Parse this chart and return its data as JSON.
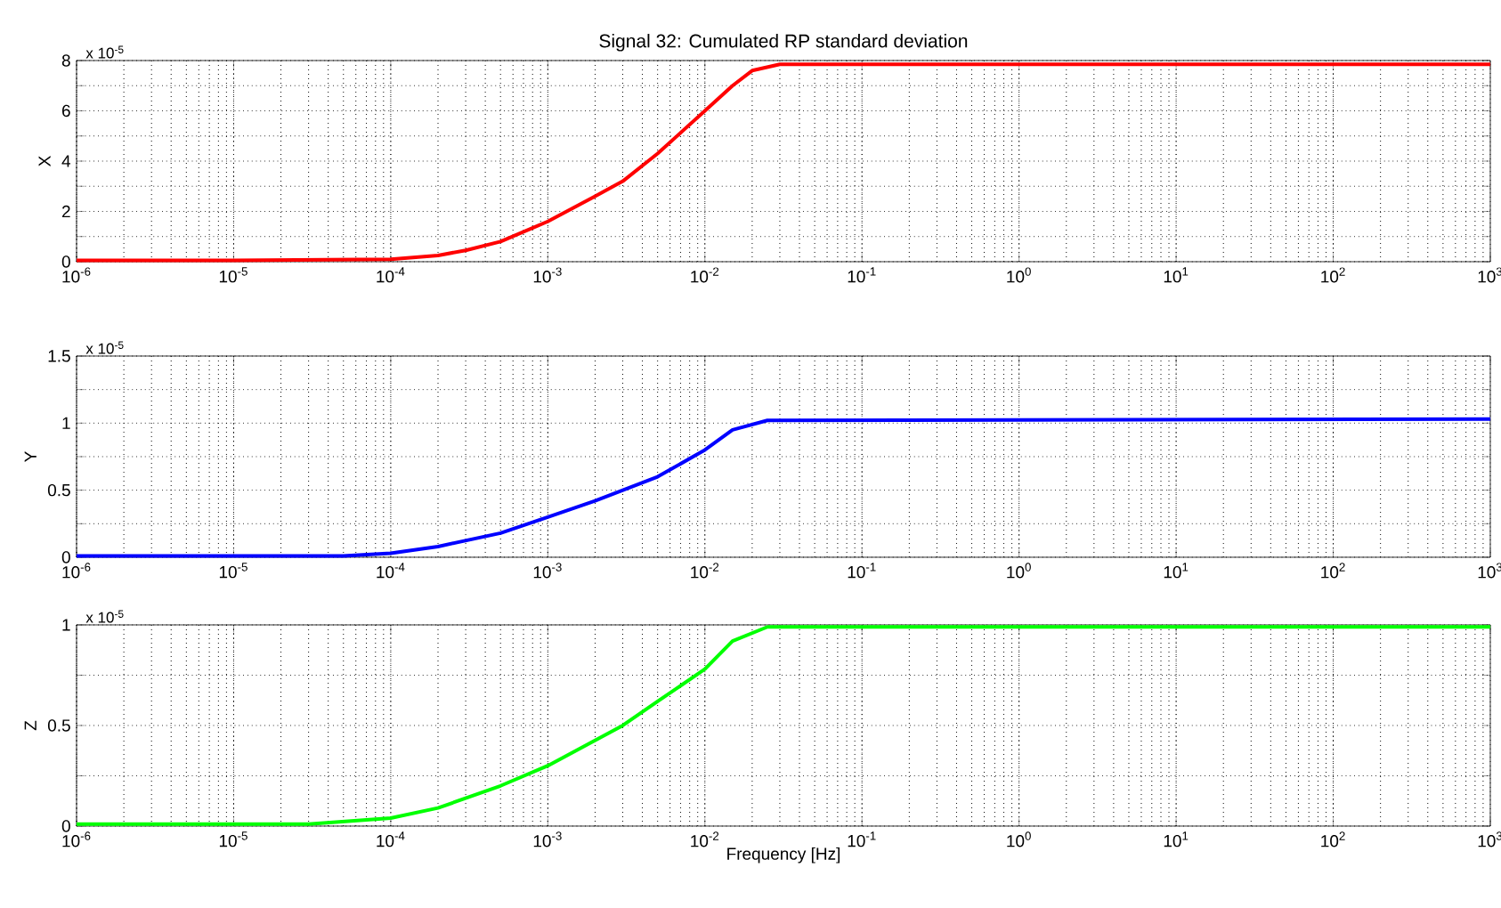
{
  "chart_data": [
    {
      "type": "line",
      "title": "Signal 32: Cumulated RP standard deviation",
      "ylabel": "X",
      "log": "x",
      "grid": true,
      "marker": "none",
      "line_style": "solid",
      "xlim": [
        1e-06,
        1000
      ],
      "xticks": [
        {
          "value": 1e-06,
          "label": "10$^{-6}$"
        },
        {
          "value": 1e-05,
          "label": "10$^{-5}$"
        },
        {
          "value": 0.0001,
          "label": "10$^{-4}$"
        },
        {
          "value": 0.001,
          "label": "10$^{-3}$"
        },
        {
          "value": 0.01,
          "label": "10$^{-2}$"
        },
        {
          "value": 0.1,
          "label": "10$^{-1}$"
        },
        {
          "value": 1,
          "label": "10$^{0}$"
        },
        {
          "value": 10,
          "label": "10$^{1}$"
        },
        {
          "value": 100,
          "label": "10$^{2}$"
        },
        {
          "value": 1000,
          "label": "10$^{3}$"
        }
      ],
      "ylim": [
        0,
        8
      ],
      "yticks": [
        0,
        {
          "value": 1,
          "label": null
        },
        2,
        {
          "value": 3,
          "label": null
        },
        4,
        {
          "value": 5,
          "label": null
        },
        6,
        {
          "value": 7,
          "label": null
        },
        8
      ],
      "annotations": [
        "x 10$^{-5}$"
      ],
      "series": [
        {
          "color": "#ff0000",
          "x": [
            1e-06,
            1e-05,
            0.0001,
            0.0002,
            0.0003,
            0.0005,
            0.001,
            0.002,
            0.003,
            0.005,
            0.01,
            0.015,
            0.02,
            0.03,
            1000
          ],
          "values": [
            0.05,
            0.05,
            0.1,
            0.25,
            0.45,
            0.8,
            1.6,
            2.6,
            3.2,
            4.3,
            6,
            7,
            7.6,
            7.85,
            7.85
          ]
        }
      ]
    },
    {
      "type": "line",
      "ylabel": "Y",
      "log": "x",
      "grid": true,
      "marker": "none",
      "line_style": "solid",
      "xlim": [
        1e-06,
        1000
      ],
      "xticks": [
        {
          "value": 1e-06,
          "label": "10$^{-6}$"
        },
        {
          "value": 1e-05,
          "label": "10$^{-5}$"
        },
        {
          "value": 0.0001,
          "label": "10$^{-4}$"
        },
        {
          "value": 0.001,
          "label": "10$^{-3}$"
        },
        {
          "value": 0.01,
          "label": "10$^{-2}$"
        },
        {
          "value": 0.1,
          "label": "10$^{-1}$"
        },
        {
          "value": 1,
          "label": "10$^{0}$"
        },
        {
          "value": 10,
          "label": "10$^{1}$"
        },
        {
          "value": 100,
          "label": "10$^{2}$"
        },
        {
          "value": 1000,
          "label": "10$^{3}$"
        }
      ],
      "ylim": [
        0,
        1.5
      ],
      "yticks": [
        0,
        {
          "value": 0.25,
          "label": null
        },
        0.5,
        {
          "value": 0.75,
          "label": null
        },
        1,
        {
          "value": 1.25,
          "label": null
        },
        1.5
      ],
      "annotations": [
        "x 10$^{-5}$"
      ],
      "series": [
        {
          "color": "#0000ff",
          "x": [
            1e-06,
            5e-05,
            0.0001,
            0.0002,
            0.0005,
            0.001,
            0.002,
            0.005,
            0.01,
            0.015,
            0.025,
            1000
          ],
          "values": [
            0.01,
            0.01,
            0.03,
            0.08,
            0.18,
            0.3,
            0.42,
            0.6,
            0.8,
            0.95,
            1.02,
            1.03
          ]
        }
      ]
    },
    {
      "type": "line",
      "ylabel": "Z",
      "xlabel": "Frequency  [Hz]",
      "log": "x",
      "grid": true,
      "marker": "none",
      "line_style": "solid",
      "xlim": [
        1e-06,
        1000
      ],
      "xticks": [
        {
          "value": 1e-06,
          "label": "10$^{-6}$"
        },
        {
          "value": 1e-05,
          "label": "10$^{-5}$"
        },
        {
          "value": 0.0001,
          "label": "10$^{-4}$"
        },
        {
          "value": 0.001,
          "label": "10$^{-3}$"
        },
        {
          "value": 0.01,
          "label": "10$^{-2}$"
        },
        {
          "value": 0.1,
          "label": "10$^{-1}$"
        },
        {
          "value": 1,
          "label": "10$^{0}$"
        },
        {
          "value": 10,
          "label": "10$^{1}$"
        },
        {
          "value": 100,
          "label": "10$^{2}$"
        },
        {
          "value": 1000,
          "label": "10$^{3}$"
        }
      ],
      "ylim": [
        0,
        1
      ],
      "yticks": [
        0,
        {
          "value": 0.25,
          "label": null
        },
        0.5,
        {
          "value": 0.75,
          "label": null
        },
        1
      ],
      "annotations": [
        "x 10$^{-5}$"
      ],
      "series": [
        {
          "color": "#00ff00",
          "x": [
            1e-06,
            3e-05,
            0.0001,
            0.0002,
            0.0005,
            0.001,
            0.003,
            0.005,
            0.01,
            0.015,
            0.025,
            1000
          ],
          "values": [
            0.01,
            0.01,
            0.04,
            0.09,
            0.2,
            0.3,
            0.5,
            0.62,
            0.78,
            0.92,
            0.99,
            0.99
          ]
        }
      ]
    }
  ]
}
